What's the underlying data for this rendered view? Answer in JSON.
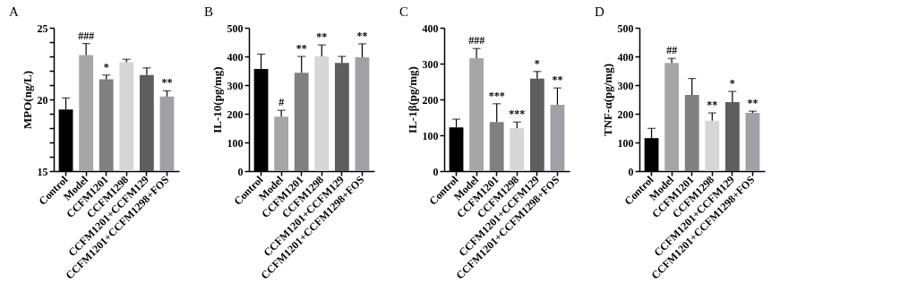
{
  "chart_data": [
    {
      "type": "bar",
      "title": "A",
      "ylabel": "MPO(ng/L)",
      "categories": [
        "Control",
        "Model",
        "CCFM1201",
        "CCFM1298",
        "CCFM1201+CCFM129",
        "CCFM1201+CCFM1298+FOS"
      ],
      "values": [
        19.3,
        23.1,
        21.4,
        22.6,
        21.7,
        20.2
      ],
      "errors": [
        [
          19.3,
          20.1
        ],
        [
          23.1,
          23.9
        ],
        [
          21.4,
          21.7
        ],
        [
          22.6,
          22.8
        ],
        [
          21.7,
          22.2
        ],
        [
          20.2,
          20.6
        ]
      ],
      "colors": [
        "#000000",
        "#a6a6a6",
        "#808080",
        "#d6d6d6",
        "#5e5e5e",
        "#a0a0a6"
      ],
      "ylim": [
        15,
        25
      ],
      "yticks": [
        15,
        {
          "value": 16,
          "label": null
        },
        {
          "value": 17,
          "label": null
        },
        {
          "value": 18,
          "label": null
        },
        {
          "value": 19,
          "label": null
        },
        20,
        {
          "value": 21,
          "label": null
        },
        {
          "value": 22,
          "label": null
        },
        {
          "value": 23,
          "label": null
        },
        {
          "value": 24,
          "label": null
        },
        25
      ],
      "grid": false,
      "legend": false,
      "annotations": [
        {
          "text": "###",
          "x": "Model",
          "y": 23.9
        },
        {
          "text": "*",
          "x": "CCFM1201",
          "y": 21.7
        },
        {
          "text": "**",
          "x": "CCFM1201+CCFM1298+FOS",
          "y": 20.6
        }
      ]
    },
    {
      "type": "bar",
      "title": "B",
      "ylabel": "IL-10(pg/mg)",
      "categories": [
        "Control",
        "Model",
        "CCFM1201",
        "CCFM1298",
        "CCFM1201+CCFM129",
        "CCFM1201+CCFM1298+FOS"
      ],
      "values": [
        356,
        190,
        343,
        400,
        377,
        397
      ],
      "errors": [
        [
          356,
          408
        ],
        [
          190,
          212
        ],
        [
          343,
          400
        ],
        [
          400,
          440
        ],
        [
          377,
          400
        ],
        [
          397,
          444
        ]
      ],
      "colors": [
        "#000000",
        "#a6a6a6",
        "#808080",
        "#d6d6d6",
        "#5e5e5e",
        "#a0a0a6"
      ],
      "ylim": [
        0,
        500
      ],
      "yticks": [
        0,
        100,
        200,
        300,
        400,
        500
      ],
      "grid": false,
      "legend": false,
      "annotations": [
        {
          "text": "#",
          "x": "Model",
          "y": 212
        },
        {
          "text": "**",
          "x": "CCFM1201",
          "y": 400
        },
        {
          "text": "**",
          "x": "CCFM1298",
          "y": 440
        },
        {
          "text": "**",
          "x": "CCFM1201+CCFM1298+FOS",
          "y": 444
        }
      ]
    },
    {
      "type": "bar",
      "title": "C",
      "ylabel": "IL-1β(pg/mg)",
      "categories": [
        "Control",
        "Model",
        "CCFM1201",
        "CCFM1298",
        "CCFM1201+CCFM129",
        "CCFM1201+CCFM1298+FOS"
      ],
      "values": [
        122,
        315,
        137,
        120,
        258,
        185
      ],
      "errors": [
        [
          122,
          145
        ],
        [
          315,
          342
        ],
        [
          137,
          188
        ],
        [
          120,
          137
        ],
        [
          258,
          278
        ],
        [
          185,
          232
        ]
      ],
      "colors": [
        "#000000",
        "#a6a6a6",
        "#808080",
        "#d6d6d6",
        "#5e5e5e",
        "#a0a0a6"
      ],
      "ylim": [
        0,
        400
      ],
      "yticks": [
        0,
        100,
        200,
        300,
        400
      ],
      "grid": false,
      "legend": false,
      "annotations": [
        {
          "text": "###",
          "x": "Model",
          "y": 342
        },
        {
          "text": "***",
          "x": "CCFM1201",
          "y": 188
        },
        {
          "text": "***",
          "x": "CCFM1298",
          "y": 137
        },
        {
          "text": "*",
          "x": "CCFM1201+CCFM129",
          "y": 278
        },
        {
          "text": "**",
          "x": "CCFM1201+CCFM1298+FOS",
          "y": 232
        }
      ]
    },
    {
      "type": "bar",
      "title": "D",
      "ylabel": "TNF-α(pg/mg)",
      "categories": [
        "Control",
        "Model",
        "CCFM1201",
        "CCFM1298",
        "CCFM1201+CCFM129",
        "CCFM1201+CCFM1298+FOS"
      ],
      "values": [
        115,
        377,
        266,
        176,
        241,
        203
      ],
      "errors": [
        [
          115,
          149
        ],
        [
          377,
          393
        ],
        [
          266,
          323
        ],
        [
          176,
          203
        ],
        [
          241,
          278
        ],
        [
          203,
          209
        ]
      ],
      "colors": [
        "#000000",
        "#a6a6a6",
        "#808080",
        "#d6d6d6",
        "#5e5e5e",
        "#a0a0a6"
      ],
      "ylim": [
        0,
        500
      ],
      "yticks": [
        0,
        100,
        200,
        300,
        400,
        500
      ],
      "grid": false,
      "legend": false,
      "annotations": [
        {
          "text": "##",
          "x": "Model",
          "y": 393
        },
        {
          "text": "**",
          "x": "CCFM1298",
          "y": 203
        },
        {
          "text": "*",
          "x": "CCFM1201+CCFM129",
          "y": 278
        },
        {
          "text": "**",
          "x": "CCFM1201+CCFM1298+FOS",
          "y": 209
        }
      ]
    }
  ]
}
